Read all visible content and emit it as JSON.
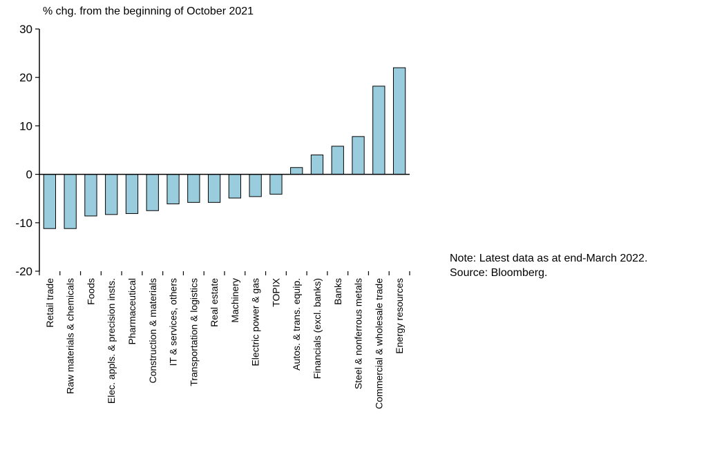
{
  "chart_data": {
    "type": "bar",
    "title": "",
    "ylabel": "% chg. from the beginning of October 2021",
    "xlabel": "",
    "ylim": [
      -20,
      30
    ],
    "yticks": [
      -20,
      -10,
      0,
      10,
      20,
      30
    ],
    "grid": false,
    "bar_color": "#99CCDD",
    "bar_edge_color": "#000000",
    "categories": [
      "Retail trade",
      "Raw materials & chemicals",
      "Foods",
      "Elec. appls. & precision insts.",
      "Pharmaceutical",
      "Construction & materials",
      "IT & services, others",
      "Transportation & logistics",
      "Real estate",
      "Machinery",
      "Electric power & gas",
      "TOPIX",
      "Autos. & trans. equip.",
      "Financials (excl. banks)",
      "Banks",
      "Steel & nonferrous metals",
      "Commercial & wholesale trade",
      "Energy resources"
    ],
    "values": [
      -11.2,
      -11.2,
      -8.6,
      -8.3,
      -8.1,
      -7.5,
      -6.1,
      -5.8,
      -5.8,
      -4.9,
      -4.6,
      -4.1,
      1.4,
      4.0,
      5.8,
      7.8,
      18.2,
      22.0
    ]
  },
  "notes": {
    "note": "Note: Latest data as at end-March 2022.",
    "source": "Source: Bloomberg."
  }
}
